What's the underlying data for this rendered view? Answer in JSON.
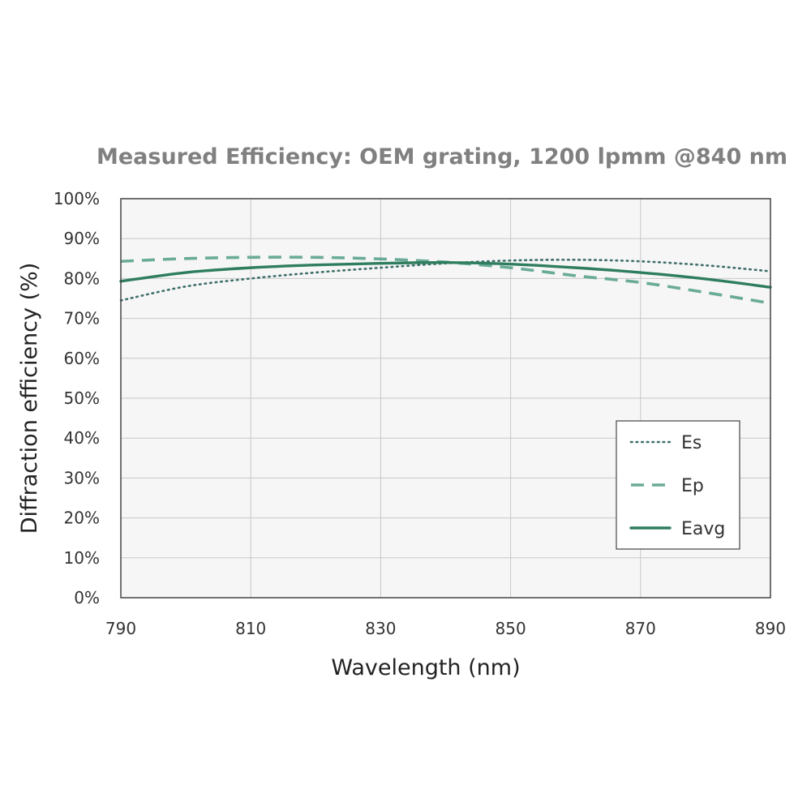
{
  "chart_data": {
    "type": "line",
    "title": "Measured Efficiency: OEM grating, 1200 lpmm @840 nm",
    "xlabel": "Wavelength (nm)",
    "ylabel": "Diffraction efficiency (%)",
    "xlim": [
      790,
      890
    ],
    "ylim": [
      0,
      100
    ],
    "x_ticks": [
      790,
      810,
      830,
      850,
      870,
      890
    ],
    "y_ticks": [
      0,
      10,
      20,
      30,
      40,
      50,
      60,
      70,
      80,
      90,
      100
    ],
    "x_tick_labels": [
      "790",
      "810",
      "830",
      "850",
      "870",
      "890"
    ],
    "y_tick_labels": [
      "0%",
      "10%",
      "20%",
      "30%",
      "40%",
      "50%",
      "60%",
      "70%",
      "80%",
      "90%",
      "100%"
    ],
    "grid": true,
    "legend_position": "bottom-right",
    "x": [
      790,
      800,
      810,
      820,
      830,
      840,
      850,
      860,
      870,
      880,
      890
    ],
    "series": [
      {
        "name": "Es",
        "style": "dotted",
        "color": "#3f6f6a",
        "values": [
          74.5,
          78.0,
          80.0,
          81.5,
          82.7,
          83.8,
          84.5,
          84.7,
          84.3,
          83.3,
          81.8
        ]
      },
      {
        "name": "Ep",
        "style": "dashed",
        "color": "#6aab97",
        "values": [
          84.3,
          85.0,
          85.3,
          85.3,
          84.9,
          84.1,
          82.7,
          80.7,
          79.0,
          76.5,
          73.8
        ]
      },
      {
        "name": "Eavg",
        "style": "solid",
        "color": "#2f7d5f",
        "values": [
          79.3,
          81.5,
          82.7,
          83.4,
          83.8,
          84.0,
          83.6,
          82.7,
          81.5,
          79.9,
          77.8
        ]
      }
    ]
  }
}
